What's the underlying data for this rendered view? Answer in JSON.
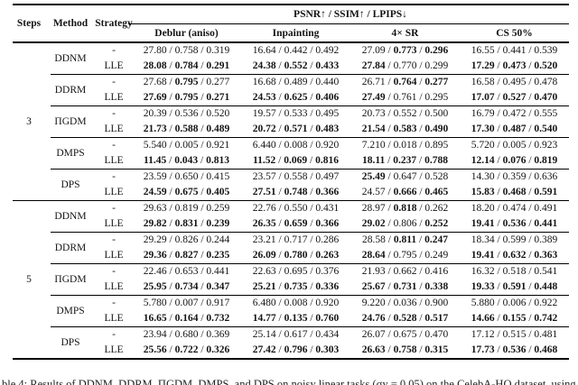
{
  "header": {
    "steps": "Steps",
    "method": "Method",
    "strategy": "Strategy",
    "metrics": "PSNR↑ / SSIM↑ / LPIPS↓",
    "tasks": [
      "Deblur (aniso)",
      "Inpainting",
      "4× SR",
      "CS 50%"
    ]
  },
  "groups": [
    {
      "steps": "3",
      "methods": [
        {
          "name": "DDNM",
          "rows": [
            {
              "strategy": "-",
              "cells": [
                [
                  "27.80",
                  "0.758",
                  "0.319",
                  "000"
                ],
                [
                  "16.64",
                  "0.442",
                  "0.492",
                  "000"
                ],
                [
                  "27.09",
                  "0.773",
                  "0.296",
                  "011"
                ],
                [
                  "16.55",
                  "0.441",
                  "0.539",
                  "000"
                ]
              ]
            },
            {
              "strategy": "LLE",
              "cells": [
                [
                  "28.08",
                  "0.784",
                  "0.291",
                  "111"
                ],
                [
                  "24.38",
                  "0.552",
                  "0.433",
                  "111"
                ],
                [
                  "27.84",
                  "0.770",
                  "0.299",
                  "100"
                ],
                [
                  "17.29",
                  "0.473",
                  "0.520",
                  "111"
                ]
              ]
            }
          ]
        },
        {
          "name": "DDRM",
          "rows": [
            {
              "strategy": "-",
              "cells": [
                [
                  "27.68",
                  "0.795",
                  "0.277",
                  "010"
                ],
                [
                  "16.68",
                  "0.489",
                  "0.440",
                  "000"
                ],
                [
                  "26.71",
                  "0.764",
                  "0.277",
                  "011"
                ],
                [
                  "16.58",
                  "0.495",
                  "0.478",
                  "000"
                ]
              ]
            },
            {
              "strategy": "LLE",
              "cells": [
                [
                  "27.69",
                  "0.795",
                  "0.271",
                  "111"
                ],
                [
                  "24.53",
                  "0.625",
                  "0.406",
                  "111"
                ],
                [
                  "27.49",
                  "0.761",
                  "0.295",
                  "100"
                ],
                [
                  "17.07",
                  "0.527",
                  "0.470",
                  "111"
                ]
              ]
            }
          ]
        },
        {
          "name": "ΠGDM",
          "rows": [
            {
              "strategy": "-",
              "cells": [
                [
                  "20.39",
                  "0.536",
                  "0.520",
                  "000"
                ],
                [
                  "19.57",
                  "0.533",
                  "0.495",
                  "000"
                ],
                [
                  "20.73",
                  "0.552",
                  "0.500",
                  "000"
                ],
                [
                  "16.79",
                  "0.472",
                  "0.555",
                  "000"
                ]
              ]
            },
            {
              "strategy": "LLE",
              "cells": [
                [
                  "21.73",
                  "0.588",
                  "0.489",
                  "111"
                ],
                [
                  "20.72",
                  "0.571",
                  "0.483",
                  "111"
                ],
                [
                  "21.54",
                  "0.583",
                  "0.490",
                  "111"
                ],
                [
                  "17.30",
                  "0.487",
                  "0.540",
                  "111"
                ]
              ]
            }
          ]
        },
        {
          "name": "DMPS",
          "rows": [
            {
              "strategy": "-",
              "cells": [
                [
                  "5.540",
                  "0.005",
                  "0.921",
                  "000"
                ],
                [
                  "6.440",
                  "0.008",
                  "0.920",
                  "000"
                ],
                [
                  "7.210",
                  "0.018",
                  "0.895",
                  "000"
                ],
                [
                  "5.720",
                  "0.005",
                  "0.923",
                  "000"
                ]
              ]
            },
            {
              "strategy": "LLE",
              "cells": [
                [
                  "11.45",
                  "0.043",
                  "0.813",
                  "111"
                ],
                [
                  "11.52",
                  "0.069",
                  "0.816",
                  "111"
                ],
                [
                  "18.11",
                  "0.237",
                  "0.788",
                  "111"
                ],
                [
                  "12.14",
                  "0.076",
                  "0.819",
                  "111"
                ]
              ]
            }
          ]
        },
        {
          "name": "DPS",
          "rows": [
            {
              "strategy": "-",
              "cells": [
                [
                  "23.59",
                  "0.650",
                  "0.415",
                  "000"
                ],
                [
                  "23.57",
                  "0.558",
                  "0.497",
                  "000"
                ],
                [
                  "25.49",
                  "0.647",
                  "0.528",
                  "100"
                ],
                [
                  "14.30",
                  "0.359",
                  "0.636",
                  "000"
                ]
              ]
            },
            {
              "strategy": "LLE",
              "cells": [
                [
                  "24.59",
                  "0.675",
                  "0.405",
                  "111"
                ],
                [
                  "27.51",
                  "0.748",
                  "0.366",
                  "111"
                ],
                [
                  "24.57",
                  "0.666",
                  "0.465",
                  "011"
                ],
                [
                  "15.83",
                  "0.468",
                  "0.591",
                  "111"
                ]
              ]
            }
          ]
        }
      ]
    },
    {
      "steps": "5",
      "methods": [
        {
          "name": "DDNM",
          "rows": [
            {
              "strategy": "-",
              "cells": [
                [
                  "29.63",
                  "0.819",
                  "0.259",
                  "000"
                ],
                [
                  "22.76",
                  "0.550",
                  "0.431",
                  "000"
                ],
                [
                  "28.97",
                  "0.818",
                  "0.262",
                  "010"
                ],
                [
                  "18.20",
                  "0.474",
                  "0.491",
                  "000"
                ]
              ]
            },
            {
              "strategy": "LLE",
              "cells": [
                [
                  "29.82",
                  "0.831",
                  "0.239",
                  "111"
                ],
                [
                  "26.35",
                  "0.659",
                  "0.366",
                  "111"
                ],
                [
                  "29.02",
                  "0.806",
                  "0.252",
                  "101"
                ],
                [
                  "19.41",
                  "0.536",
                  "0.441",
                  "111"
                ]
              ]
            }
          ]
        },
        {
          "name": "DDRM",
          "rows": [
            {
              "strategy": "-",
              "cells": [
                [
                  "29.29",
                  "0.826",
                  "0.244",
                  "000"
                ],
                [
                  "23.21",
                  "0.717",
                  "0.286",
                  "000"
                ],
                [
                  "28.58",
                  "0.811",
                  "0.247",
                  "011"
                ],
                [
                  "18.34",
                  "0.599",
                  "0.389",
                  "000"
                ]
              ]
            },
            {
              "strategy": "LLE",
              "cells": [
                [
                  "29.36",
                  "0.827",
                  "0.235",
                  "111"
                ],
                [
                  "26.09",
                  "0.780",
                  "0.263",
                  "111"
                ],
                [
                  "28.64",
                  "0.795",
                  "0.249",
                  "100"
                ],
                [
                  "19.41",
                  "0.632",
                  "0.363",
                  "111"
                ]
              ]
            }
          ]
        },
        {
          "name": "ΠGDM",
          "rows": [
            {
              "strategy": "-",
              "cells": [
                [
                  "22.46",
                  "0.653",
                  "0.441",
                  "000"
                ],
                [
                  "22.63",
                  "0.695",
                  "0.376",
                  "000"
                ],
                [
                  "21.93",
                  "0.662",
                  "0.416",
                  "000"
                ],
                [
                  "16.32",
                  "0.518",
                  "0.541",
                  "000"
                ]
              ]
            },
            {
              "strategy": "LLE",
              "cells": [
                [
                  "25.95",
                  "0.734",
                  "0.347",
                  "111"
                ],
                [
                  "25.21",
                  "0.735",
                  "0.336",
                  "111"
                ],
                [
                  "25.67",
                  "0.731",
                  "0.338",
                  "111"
                ],
                [
                  "19.33",
                  "0.591",
                  "0.448",
                  "111"
                ]
              ]
            }
          ]
        },
        {
          "name": "DMPS",
          "rows": [
            {
              "strategy": "-",
              "cells": [
                [
                  "5.780",
                  "0.007",
                  "0.917",
                  "000"
                ],
                [
                  "6.480",
                  "0.008",
                  "0.920",
                  "000"
                ],
                [
                  "9.220",
                  "0.036",
                  "0.900",
                  "000"
                ],
                [
                  "5.880",
                  "0.006",
                  "0.922",
                  "000"
                ]
              ]
            },
            {
              "strategy": "LLE",
              "cells": [
                [
                  "16.65",
                  "0.164",
                  "0.732",
                  "111"
                ],
                [
                  "14.77",
                  "0.135",
                  "0.760",
                  "111"
                ],
                [
                  "24.76",
                  "0.528",
                  "0.517",
                  "111"
                ],
                [
                  "14.66",
                  "0.155",
                  "0.742",
                  "111"
                ]
              ]
            }
          ]
        },
        {
          "name": "DPS",
          "rows": [
            {
              "strategy": "-",
              "cells": [
                [
                  "23.94",
                  "0.680",
                  "0.369",
                  "000"
                ],
                [
                  "25.14",
                  "0.617",
                  "0.434",
                  "000"
                ],
                [
                  "26.07",
                  "0.675",
                  "0.470",
                  "000"
                ],
                [
                  "17.12",
                  "0.515",
                  "0.481",
                  "000"
                ]
              ]
            },
            {
              "strategy": "LLE",
              "cells": [
                [
                  "25.56",
                  "0.722",
                  "0.326",
                  "111"
                ],
                [
                  "27.42",
                  "0.796",
                  "0.303",
                  "111"
                ],
                [
                  "26.63",
                  "0.758",
                  "0.315",
                  "111"
                ],
                [
                  "17.73",
                  "0.536",
                  "0.468",
                  "111"
                ]
              ]
            }
          ]
        }
      ]
    }
  ],
  "caption": "ble 4: Results of DDNM, DDRM, ΠGDM, DMPS, and DPS on noisy linear tasks (σy = 0.05) on the CelebA-HQ dataset, using 3 and"
}
